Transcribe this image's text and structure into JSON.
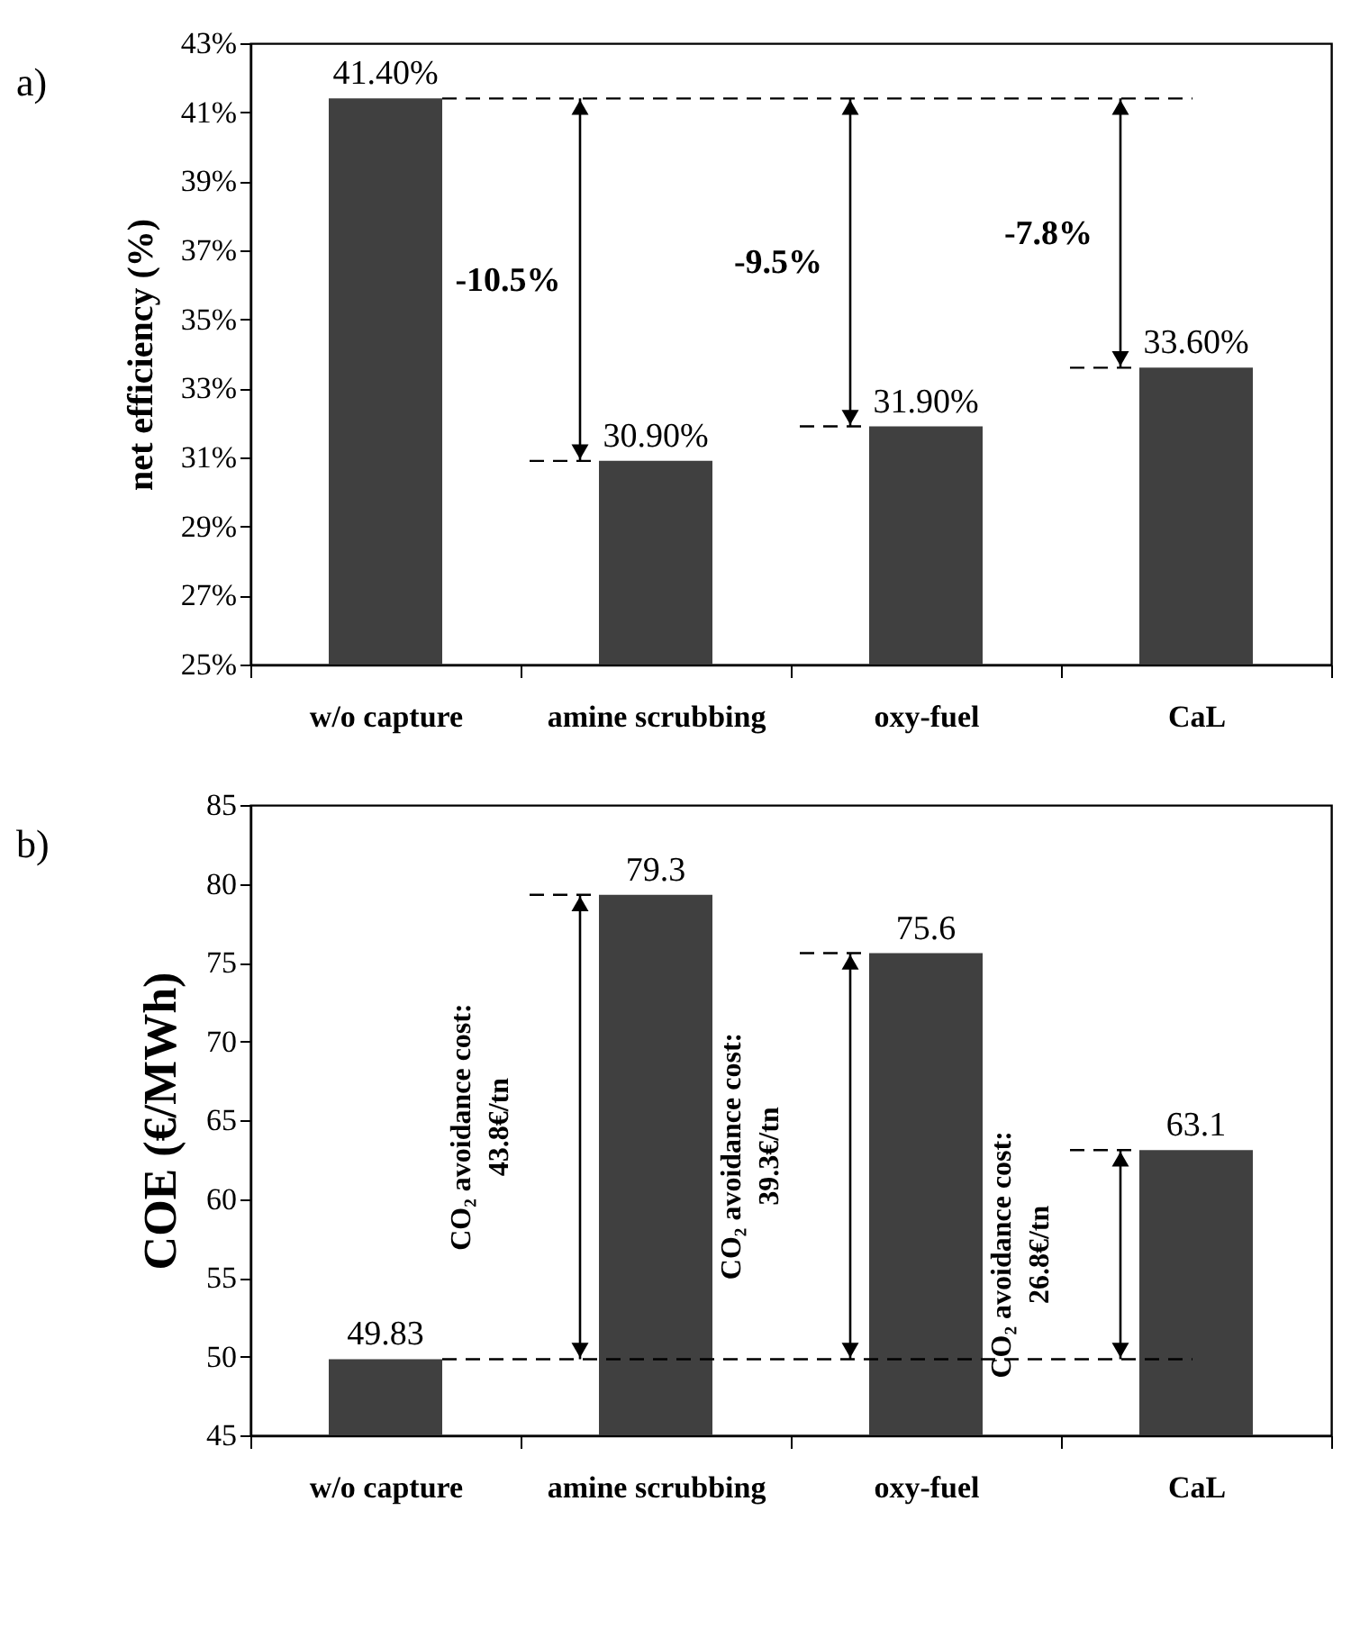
{
  "chart_data": [
    {
      "type": "bar",
      "ylabel": "net efficiency (%)",
      "categories": [
        "w/o capture",
        "amine scrubbing",
        "oxy-fuel",
        "CaL"
      ],
      "values": [
        41.4,
        30.9,
        31.9,
        33.6
      ],
      "value_labels": [
        "41.40%",
        "30.90%",
        "31.90%",
        "33.60%"
      ],
      "color": "#404040",
      "ylim": [
        25,
        43
      ],
      "yticks": [
        {
          "value": 25,
          "label": "25%"
        },
        {
          "value": 27,
          "label": "27%"
        },
        {
          "value": 29,
          "label": "29%"
        },
        {
          "value": 31,
          "label": "31%"
        },
        {
          "value": 33,
          "label": "33%"
        },
        {
          "value": 35,
          "label": "35%"
        },
        {
          "value": 37,
          "label": "37%"
        },
        {
          "value": 39,
          "label": "39%"
        },
        {
          "value": 41,
          "label": "41%"
        },
        {
          "value": 43,
          "label": "43%"
        }
      ],
      "ref_lines": [
        {
          "axis": "y",
          "value": 41.4,
          "line_style": "dashed"
        }
      ],
      "title": "a)",
      "annotations": [
        "-10.5%",
        "-9.5%",
        "-7.8%"
      ]
    },
    {
      "type": "bar",
      "ylabel": "COE (€/MWh)",
      "categories": [
        "w/o capture",
        "amine scrubbing",
        "oxy-fuel",
        "CaL"
      ],
      "values": [
        49.83,
        79.3,
        75.6,
        63.1
      ],
      "data_labels": true,
      "color": "#404040",
      "ylim": [
        45,
        85
      ],
      "yticks": [
        45,
        50,
        55,
        60,
        65,
        70,
        75,
        80,
        85
      ],
      "ref_lines": [
        {
          "axis": "y",
          "value": 49.83,
          "line_style": "dashed"
        }
      ],
      "title": "b)",
      "annotations": [
        "CO₂ avoidance cost:\n43.8€/tn",
        "CO₂ avoidance cost:\n39.3€/tn",
        "CO₂ avoidance cost:\n26.8€/tn"
      ]
    }
  ]
}
